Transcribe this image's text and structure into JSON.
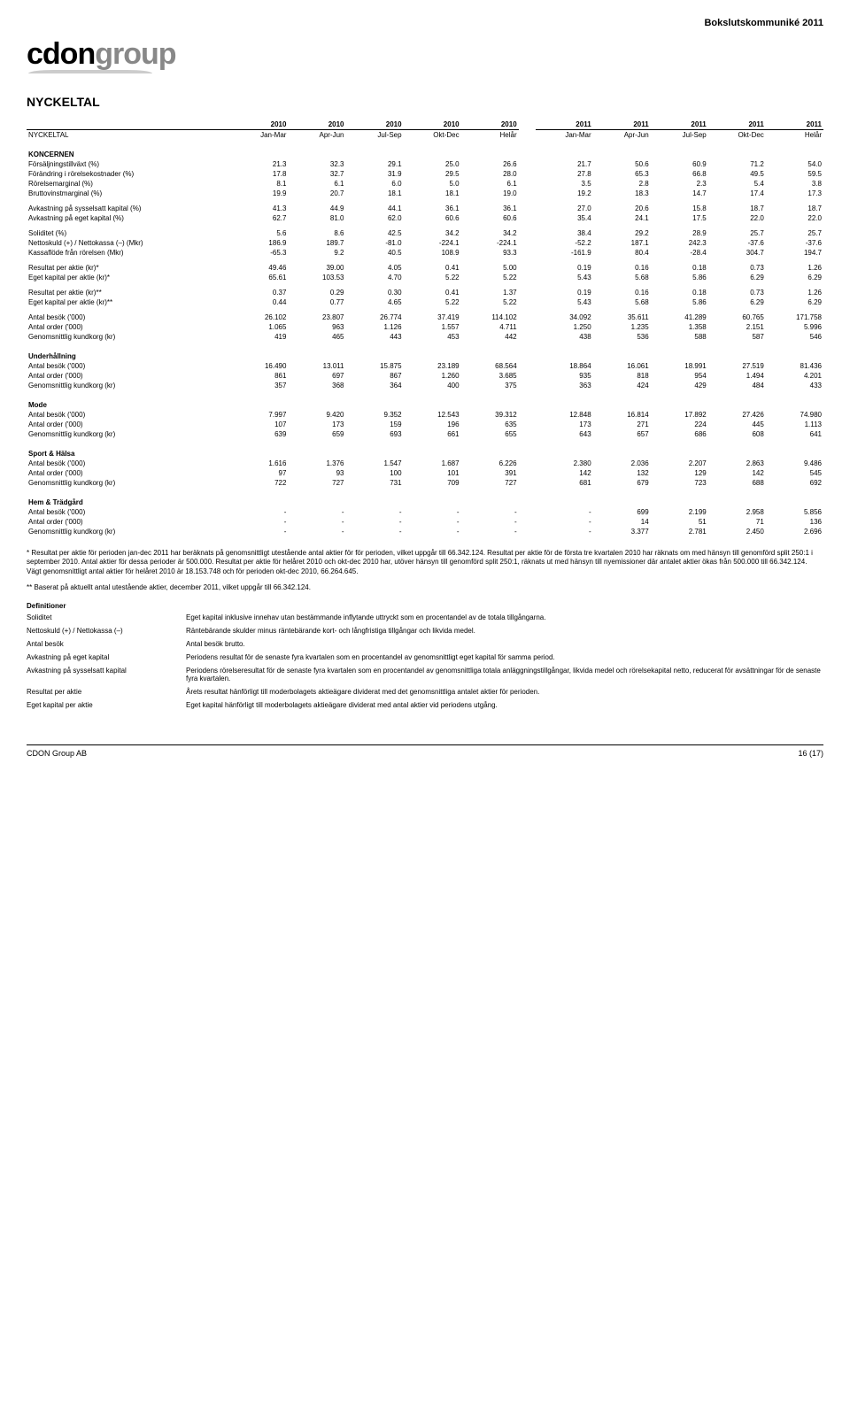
{
  "doc": {
    "top_title": "Bokslutskommuniké 2011",
    "logo_cdon": "cdon",
    "logo_group": "group",
    "heading": "NYCKELTAL",
    "footer_left": "CDON Group AB",
    "footer_right": "16 (17)"
  },
  "columns": {
    "left_years": [
      "2010",
      "2010",
      "2010",
      "2010",
      "2010"
    ],
    "left_subs": [
      "Jan-Mar",
      "Apr-Jun",
      "Jul-Sep",
      "Okt-Dec",
      "Helår"
    ],
    "right_years": [
      "2011",
      "2011",
      "2011",
      "2011",
      "2011"
    ],
    "right_subs": [
      "Jan-Mar",
      "Apr-Jun",
      "Jul-Sep",
      "Okt-Dec",
      "Helår"
    ]
  },
  "table_header_label": "NYCKELTAL",
  "sections": [
    {
      "head": "KONCERNEN",
      "rows": [
        {
          "label": "Försäljningstillväxt (%)",
          "l": [
            "21.3",
            "32.3",
            "29.1",
            "25.0",
            "26.6"
          ],
          "r": [
            "21.7",
            "50.6",
            "60.9",
            "71.2",
            "54.0"
          ]
        },
        {
          "label": "Förändring i rörelsekostnader (%)",
          "l": [
            "17.8",
            "32.7",
            "31.9",
            "29.5",
            "28.0"
          ],
          "r": [
            "27.8",
            "65.3",
            "66.8",
            "49.5",
            "59.5"
          ]
        },
        {
          "label": "Rörelsemarginal (%)",
          "l": [
            "8.1",
            "6.1",
            "6.0",
            "5.0",
            "6.1"
          ],
          "r": [
            "3.5",
            "2.8",
            "2.3",
            "5.4",
            "3.8"
          ]
        },
        {
          "label": "Bruttovinstmarginal (%)",
          "l": [
            "19.9",
            "20.7",
            "18.1",
            "18.1",
            "19.0"
          ],
          "r": [
            "19.2",
            "18.3",
            "14.7",
            "17.4",
            "17.3"
          ]
        }
      ]
    },
    {
      "rows": [
        {
          "label": "Avkastning på sysselsatt kapital (%)",
          "l": [
            "41.3",
            "44.9",
            "44.1",
            "36.1",
            "36.1"
          ],
          "r": [
            "27.0",
            "20.6",
            "15.8",
            "18.7",
            "18.7"
          ]
        },
        {
          "label": "Avkastning på eget kapital (%)",
          "l": [
            "62.7",
            "81.0",
            "62.0",
            "60.6",
            "60.6"
          ],
          "r": [
            "35.4",
            "24.1",
            "17.5",
            "22.0",
            "22.0"
          ]
        }
      ]
    },
    {
      "rows": [
        {
          "label": "Soliditet (%)",
          "l": [
            "5.6",
            "8.6",
            "42.5",
            "34.2",
            "34.2"
          ],
          "r": [
            "38.4",
            "29.2",
            "28.9",
            "25.7",
            "25.7"
          ]
        },
        {
          "label": "Nettoskuld (+) / Nettokassa (–) (Mkr)",
          "l": [
            "186.9",
            "189.7",
            "-81.0",
            "-224.1",
            "-224.1"
          ],
          "r": [
            "-52.2",
            "187.1",
            "242.3",
            "-37.6",
            "-37.6"
          ]
        },
        {
          "label": "Kassaflöde från rörelsen (Mkr)",
          "l": [
            "-65.3",
            "9.2",
            "40.5",
            "108.9",
            "93.3"
          ],
          "r": [
            "-161.9",
            "80.4",
            "-28.4",
            "304.7",
            "194.7"
          ]
        }
      ]
    },
    {
      "rows": [
        {
          "label": "Resultat per aktie (kr)*",
          "l": [
            "49.46",
            "39.00",
            "4.05",
            "0.41",
            "5.00"
          ],
          "r": [
            "0.19",
            "0.16",
            "0.18",
            "0.73",
            "1.26"
          ]
        },
        {
          "label": "Eget kapital per aktie (kr)*",
          "l": [
            "65.61",
            "103.53",
            "4.70",
            "5.22",
            "5.22"
          ],
          "r": [
            "5.43",
            "5.68",
            "5.86",
            "6.29",
            "6.29"
          ]
        }
      ]
    },
    {
      "rows": [
        {
          "label": "Resultat per aktie (kr)**",
          "l": [
            "0.37",
            "0.29",
            "0.30",
            "0.41",
            "1.37"
          ],
          "r": [
            "0.19",
            "0.16",
            "0.18",
            "0.73",
            "1.26"
          ]
        },
        {
          "label": "Eget kapital per aktie (kr)**",
          "l": [
            "0.44",
            "0.77",
            "4.65",
            "5.22",
            "5.22"
          ],
          "r": [
            "5.43",
            "5.68",
            "5.86",
            "6.29",
            "6.29"
          ]
        }
      ]
    },
    {
      "rows": [
        {
          "label": "Antal besök ('000)",
          "l": [
            "26.102",
            "23.807",
            "26.774",
            "37.419",
            "114.102"
          ],
          "r": [
            "34.092",
            "35.611",
            "41.289",
            "60.765",
            "171.758"
          ]
        },
        {
          "label": "Antal order ('000)",
          "l": [
            "1.065",
            "963",
            "1.126",
            "1.557",
            "4.711"
          ],
          "r": [
            "1.250",
            "1.235",
            "1.358",
            "2.151",
            "5.996"
          ]
        },
        {
          "label": "Genomsnittlig kundkorg (kr)",
          "l": [
            "419",
            "465",
            "443",
            "453",
            "442"
          ],
          "r": [
            "438",
            "536",
            "588",
            "587",
            "546"
          ]
        }
      ]
    },
    {
      "head": "Underhållning",
      "rows": [
        {
          "label": "Antal besök ('000)",
          "l": [
            "16.490",
            "13.011",
            "15.875",
            "23.189",
            "68.564"
          ],
          "r": [
            "18.864",
            "16.061",
            "18.991",
            "27.519",
            "81.436"
          ]
        },
        {
          "label": "Antal order ('000)",
          "l": [
            "861",
            "697",
            "867",
            "1.260",
            "3.685"
          ],
          "r": [
            "935",
            "818",
            "954",
            "1.494",
            "4.201"
          ]
        },
        {
          "label": "Genomsnittlig kundkorg (kr)",
          "l": [
            "357",
            "368",
            "364",
            "400",
            "375"
          ],
          "r": [
            "363",
            "424",
            "429",
            "484",
            "433"
          ]
        }
      ]
    },
    {
      "head": "Mode",
      "rows": [
        {
          "label": "Antal besök ('000)",
          "l": [
            "7.997",
            "9.420",
            "9.352",
            "12.543",
            "39.312"
          ],
          "r": [
            "12.848",
            "16.814",
            "17.892",
            "27.426",
            "74.980"
          ]
        },
        {
          "label": "Antal order ('000)",
          "l": [
            "107",
            "173",
            "159",
            "196",
            "635"
          ],
          "r": [
            "173",
            "271",
            "224",
            "445",
            "1.113"
          ]
        },
        {
          "label": "Genomsnittlig kundkorg (kr)",
          "l": [
            "639",
            "659",
            "693",
            "661",
            "655"
          ],
          "r": [
            "643",
            "657",
            "686",
            "608",
            "641"
          ]
        }
      ]
    },
    {
      "head": "Sport & Hälsa",
      "rows": [
        {
          "label": "Antal besök ('000)",
          "l": [
            "1.616",
            "1.376",
            "1.547",
            "1.687",
            "6.226"
          ],
          "r": [
            "2.380",
            "2.036",
            "2.207",
            "2.863",
            "9.486"
          ]
        },
        {
          "label": "Antal order ('000)",
          "l": [
            "97",
            "93",
            "100",
            "101",
            "391"
          ],
          "r": [
            "142",
            "132",
            "129",
            "142",
            "545"
          ]
        },
        {
          "label": "Genomsnittlig kundkorg (kr)",
          "l": [
            "722",
            "727",
            "731",
            "709",
            "727"
          ],
          "r": [
            "681",
            "679",
            "723",
            "688",
            "692"
          ]
        }
      ]
    },
    {
      "head": "Hem & Trädgård",
      "rows": [
        {
          "label": "Antal besök ('000)",
          "l": [
            "-",
            "-",
            "-",
            "-",
            "-"
          ],
          "r": [
            "-",
            "699",
            "2.199",
            "2.958",
            "5.856"
          ]
        },
        {
          "label": "Antal order ('000)",
          "l": [
            "-",
            "-",
            "-",
            "-",
            "-"
          ],
          "r": [
            "-",
            "14",
            "51",
            "71",
            "136"
          ]
        },
        {
          "label": "Genomsnittlig kundkorg (kr)",
          "l": [
            "-",
            "-",
            "-",
            "-",
            "-"
          ],
          "r": [
            "-",
            "3.377",
            "2.781",
            "2.450",
            "2.696"
          ]
        }
      ]
    }
  ],
  "footnotes": [
    "* Resultat per aktie för perioden jan-dec 2011 har beräknats på genomsnittligt utestående antal aktier för för perioden, vilket uppgår till 66.342.124. Resultat per aktie för de första tre kvartalen 2010 har räknats om med hänsyn till genomförd split 250:1 i september 2010. Antal aktier för dessa perioder är 500.000. Resultat per aktie för helåret 2010 och okt-dec 2010 har, utöver hänsyn till genomförd split 250:1, räknats ut med hänsyn till nyemissioner där antalet aktier ökas från 500.000 till 66.342.124. Vägt genomsnittligt antal aktier för helåret 2010 är 18.153.748 och för perioden okt-dec 2010, 66.264.645.",
    "** Baserat på aktuellt antal utestående aktier, december 2011, vilket uppgår till 66.342.124."
  ],
  "defs_head": "Definitioner",
  "definitions": [
    {
      "term": "Soliditet",
      "body": "Eget kapital inklusive innehav utan bestämmande inflytande uttryckt som en procentandel av de totala tillgångarna."
    },
    {
      "term": "Nettoskuld (+) / Nettokassa (–)",
      "body": "Räntebärande skulder minus räntebärande kort- och långfristiga tillgångar och likvida medel."
    },
    {
      "term": "Antal besök",
      "body": "Antal besök brutto."
    },
    {
      "term": "Avkastning på eget kapital",
      "body": "Periodens resultat för de senaste fyra kvartalen som en procentandel av genomsnittligt eget kapital för samma period."
    },
    {
      "term": "Avkastning på sysselsatt kapital",
      "body": "Periodens rörelseresultat för de senaste fyra kvartalen som en procentandel av genomsnittliga totala anläggningstillgångar, likvida medel och rörelsekapital netto, reducerat för avsättningar för de senaste fyra kvartalen."
    },
    {
      "term": "Resultat per aktie",
      "body": "Årets resultat hänförligt till moderbolagets aktieägare dividerat med det genomsnittliga antalet aktier för perioden."
    },
    {
      "term": "Eget kapital per aktie",
      "body": "Eget kapital hänförligt till moderbolagets aktieägare dividerat med antal aktier vid periodens utgång."
    }
  ]
}
